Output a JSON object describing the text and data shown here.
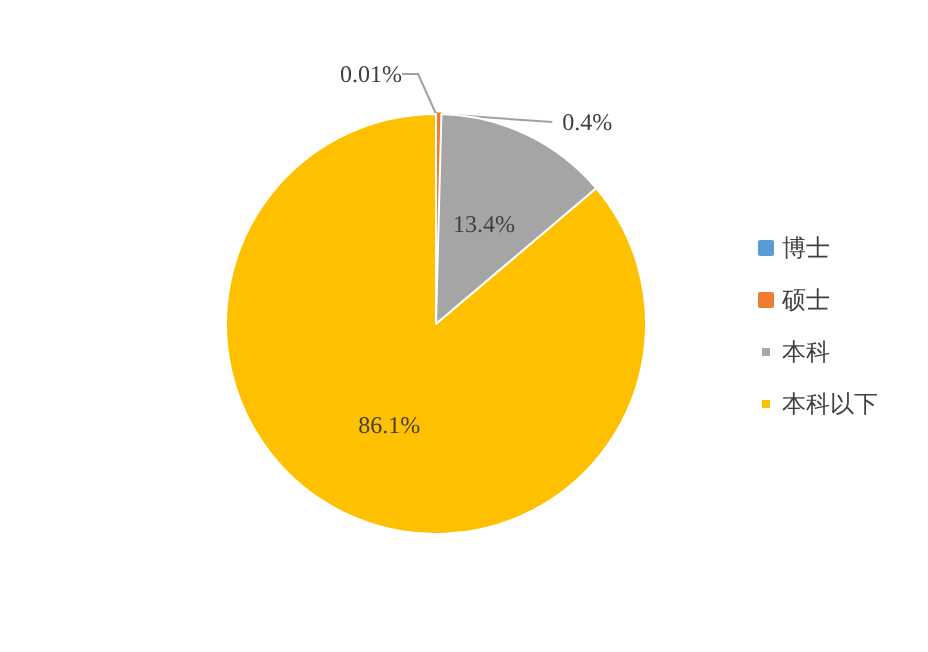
{
  "chart_data": {
    "type": "pie",
    "categories": [
      "博士",
      "硕士",
      "本科",
      "本科以下"
    ],
    "values": [
      0.01,
      0.4,
      13.4,
      86.1
    ],
    "colors": [
      "#5b9bd5",
      "#ed7d31",
      "#a5a5a5",
      "#ffc000"
    ],
    "value_labels": [
      "0.01%",
      "0.4%",
      "13.4%",
      "86.1%"
    ],
    "legend": "right"
  }
}
